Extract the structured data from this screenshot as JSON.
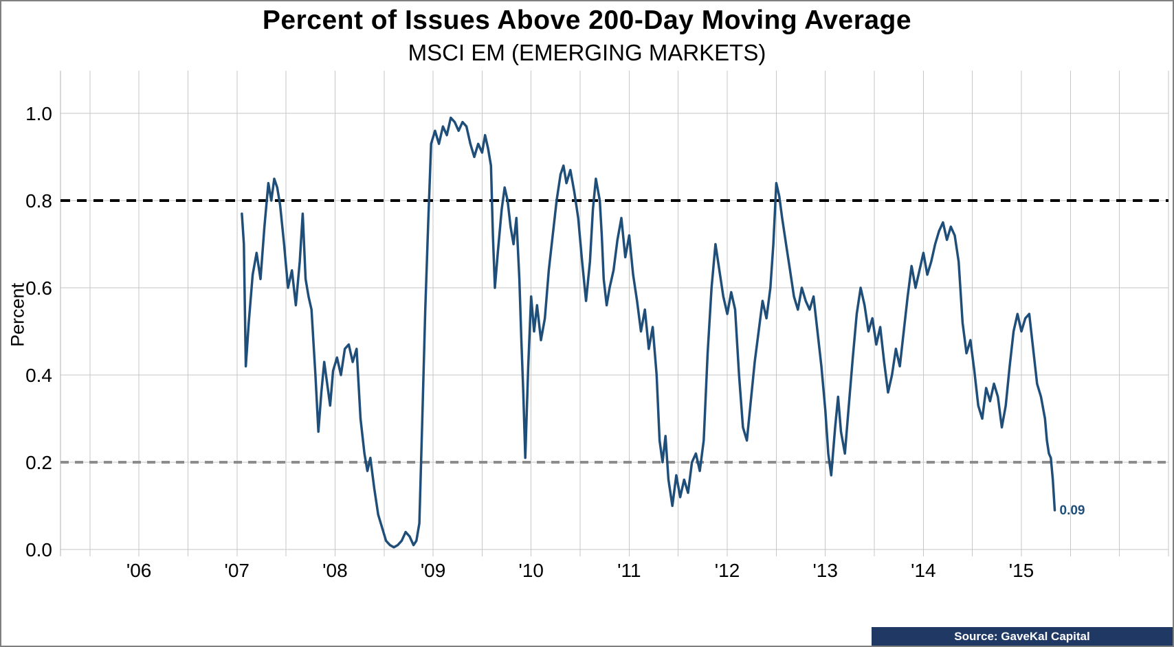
{
  "chart_data": {
    "type": "line",
    "title": "Percent of Issues Above 200-Day Moving Average",
    "subtitle": "MSCI EM (EMERGING MARKETS)",
    "ylabel": "Percent",
    "xlabel": "",
    "x_range": [
      2005.2,
      2016.5
    ],
    "y_range": [
      0,
      1.0
    ],
    "x_ticks": [
      {
        "x": 2006,
        "label": "'06"
      },
      {
        "x": 2007,
        "label": "'07"
      },
      {
        "x": 2008,
        "label": "'08"
      },
      {
        "x": 2009,
        "label": "'09"
      },
      {
        "x": 2010,
        "label": "'10"
      },
      {
        "x": 2011,
        "label": "'11"
      },
      {
        "x": 2012,
        "label": "'12"
      },
      {
        "x": 2013,
        "label": "'13"
      },
      {
        "x": 2014,
        "label": "'14"
      },
      {
        "x": 2015,
        "label": "'15"
      }
    ],
    "y_ticks": [
      {
        "v": 0.0,
        "label": "0.0"
      },
      {
        "v": 0.2,
        "label": "0.2"
      },
      {
        "v": 0.4,
        "label": "0.4"
      },
      {
        "v": 0.6,
        "label": "0.6"
      },
      {
        "v": 0.8,
        "label": "0.8"
      },
      {
        "v": 1.0,
        "label": "1.0"
      }
    ],
    "grid": {
      "vertical_step": 0.5,
      "vertical_start": 2005.5,
      "horizontal_step": 0.2,
      "color": "#c6c6c6"
    },
    "legend": "none",
    "reference_lines": [
      {
        "value": 0.8,
        "color": "#000000",
        "dash": "14 10",
        "width": 4
      },
      {
        "value": 0.2,
        "color": "#8c8c8c",
        "dash": "12 9",
        "width": 4
      }
    ],
    "series": [
      {
        "name": "Percent of issues above 200-day moving average",
        "color": "#1F4E79",
        "width": 3.5,
        "points": [
          [
            2007.05,
            0.77
          ],
          [
            2007.07,
            0.7
          ],
          [
            2007.09,
            0.42
          ],
          [
            2007.12,
            0.52
          ],
          [
            2007.16,
            0.63
          ],
          [
            2007.2,
            0.68
          ],
          [
            2007.24,
            0.62
          ],
          [
            2007.28,
            0.74
          ],
          [
            2007.32,
            0.84
          ],
          [
            2007.35,
            0.8
          ],
          [
            2007.38,
            0.85
          ],
          [
            2007.41,
            0.83
          ],
          [
            2007.44,
            0.79
          ],
          [
            2007.48,
            0.7
          ],
          [
            2007.52,
            0.6
          ],
          [
            2007.56,
            0.64
          ],
          [
            2007.6,
            0.56
          ],
          [
            2007.64,
            0.66
          ],
          [
            2007.67,
            0.77
          ],
          [
            2007.7,
            0.62
          ],
          [
            2007.73,
            0.58
          ],
          [
            2007.76,
            0.55
          ],
          [
            2007.8,
            0.4
          ],
          [
            2007.83,
            0.27
          ],
          [
            2007.86,
            0.36
          ],
          [
            2007.89,
            0.43
          ],
          [
            2007.92,
            0.38
          ],
          [
            2007.95,
            0.33
          ],
          [
            2007.98,
            0.41
          ],
          [
            2008.02,
            0.44
          ],
          [
            2008.06,
            0.4
          ],
          [
            2008.1,
            0.46
          ],
          [
            2008.14,
            0.47
          ],
          [
            2008.18,
            0.43
          ],
          [
            2008.22,
            0.46
          ],
          [
            2008.26,
            0.3
          ],
          [
            2008.3,
            0.22
          ],
          [
            2008.33,
            0.18
          ],
          [
            2008.36,
            0.21
          ],
          [
            2008.4,
            0.14
          ],
          [
            2008.44,
            0.08
          ],
          [
            2008.48,
            0.05
          ],
          [
            2008.52,
            0.02
          ],
          [
            2008.56,
            0.01
          ],
          [
            2008.6,
            0.005
          ],
          [
            2008.64,
            0.01
          ],
          [
            2008.68,
            0.02
          ],
          [
            2008.72,
            0.04
          ],
          [
            2008.76,
            0.03
          ],
          [
            2008.8,
            0.01
          ],
          [
            2008.83,
            0.02
          ],
          [
            2008.86,
            0.06
          ],
          [
            2008.89,
            0.3
          ],
          [
            2008.92,
            0.55
          ],
          [
            2008.95,
            0.75
          ],
          [
            2008.98,
            0.93
          ],
          [
            2009.02,
            0.96
          ],
          [
            2009.06,
            0.93
          ],
          [
            2009.1,
            0.97
          ],
          [
            2009.14,
            0.95
          ],
          [
            2009.18,
            0.99
          ],
          [
            2009.22,
            0.98
          ],
          [
            2009.26,
            0.96
          ],
          [
            2009.3,
            0.98
          ],
          [
            2009.34,
            0.97
          ],
          [
            2009.38,
            0.93
          ],
          [
            2009.42,
            0.9
          ],
          [
            2009.46,
            0.93
          ],
          [
            2009.5,
            0.91
          ],
          [
            2009.53,
            0.95
          ],
          [
            2009.56,
            0.92
          ],
          [
            2009.59,
            0.88
          ],
          [
            2009.61,
            0.72
          ],
          [
            2009.63,
            0.6
          ],
          [
            2009.66,
            0.68
          ],
          [
            2009.7,
            0.78
          ],
          [
            2009.73,
            0.83
          ],
          [
            2009.76,
            0.8
          ],
          [
            2009.79,
            0.74
          ],
          [
            2009.82,
            0.7
          ],
          [
            2009.85,
            0.76
          ],
          [
            2009.88,
            0.62
          ],
          [
            2009.9,
            0.48
          ],
          [
            2009.92,
            0.36
          ],
          [
            2009.94,
            0.21
          ],
          [
            2009.97,
            0.42
          ],
          [
            2010.0,
            0.58
          ],
          [
            2010.03,
            0.5
          ],
          [
            2010.06,
            0.56
          ],
          [
            2010.1,
            0.48
          ],
          [
            2010.14,
            0.53
          ],
          [
            2010.18,
            0.64
          ],
          [
            2010.22,
            0.72
          ],
          [
            2010.26,
            0.8
          ],
          [
            2010.3,
            0.86
          ],
          [
            2010.33,
            0.88
          ],
          [
            2010.36,
            0.84
          ],
          [
            2010.4,
            0.87
          ],
          [
            2010.44,
            0.82
          ],
          [
            2010.48,
            0.76
          ],
          [
            2010.52,
            0.66
          ],
          [
            2010.56,
            0.57
          ],
          [
            2010.6,
            0.66
          ],
          [
            2010.63,
            0.78
          ],
          [
            2010.66,
            0.85
          ],
          [
            2010.7,
            0.8
          ],
          [
            2010.72,
            0.72
          ],
          [
            2010.74,
            0.62
          ],
          [
            2010.77,
            0.56
          ],
          [
            2010.8,
            0.6
          ],
          [
            2010.84,
            0.64
          ],
          [
            2010.88,
            0.71
          ],
          [
            2010.92,
            0.76
          ],
          [
            2010.96,
            0.67
          ],
          [
            2011.0,
            0.72
          ],
          [
            2011.04,
            0.63
          ],
          [
            2011.08,
            0.57
          ],
          [
            2011.12,
            0.5
          ],
          [
            2011.16,
            0.55
          ],
          [
            2011.2,
            0.46
          ],
          [
            2011.24,
            0.51
          ],
          [
            2011.28,
            0.4
          ],
          [
            2011.31,
            0.25
          ],
          [
            2011.34,
            0.2
          ],
          [
            2011.37,
            0.26
          ],
          [
            2011.4,
            0.16
          ],
          [
            2011.44,
            0.1
          ],
          [
            2011.48,
            0.17
          ],
          [
            2011.52,
            0.12
          ],
          [
            2011.56,
            0.16
          ],
          [
            2011.6,
            0.13
          ],
          [
            2011.64,
            0.2
          ],
          [
            2011.68,
            0.22
          ],
          [
            2011.72,
            0.18
          ],
          [
            2011.76,
            0.25
          ],
          [
            2011.8,
            0.45
          ],
          [
            2011.84,
            0.6
          ],
          [
            2011.88,
            0.7
          ],
          [
            2011.92,
            0.64
          ],
          [
            2011.96,
            0.58
          ],
          [
            2012.0,
            0.54
          ],
          [
            2012.04,
            0.59
          ],
          [
            2012.08,
            0.55
          ],
          [
            2012.12,
            0.4
          ],
          [
            2012.16,
            0.28
          ],
          [
            2012.2,
            0.25
          ],
          [
            2012.24,
            0.34
          ],
          [
            2012.28,
            0.43
          ],
          [
            2012.32,
            0.5
          ],
          [
            2012.36,
            0.57
          ],
          [
            2012.4,
            0.53
          ],
          [
            2012.44,
            0.6
          ],
          [
            2012.47,
            0.7
          ],
          [
            2012.5,
            0.84
          ],
          [
            2012.53,
            0.81
          ],
          [
            2012.56,
            0.76
          ],
          [
            2012.6,
            0.7
          ],
          [
            2012.64,
            0.64
          ],
          [
            2012.68,
            0.58
          ],
          [
            2012.72,
            0.55
          ],
          [
            2012.76,
            0.6
          ],
          [
            2012.8,
            0.57
          ],
          [
            2012.84,
            0.55
          ],
          [
            2012.88,
            0.58
          ],
          [
            2012.92,
            0.5
          ],
          [
            2012.96,
            0.42
          ],
          [
            2013.0,
            0.32
          ],
          [
            2013.03,
            0.22
          ],
          [
            2013.06,
            0.17
          ],
          [
            2013.1,
            0.28
          ],
          [
            2013.13,
            0.35
          ],
          [
            2013.16,
            0.27
          ],
          [
            2013.2,
            0.22
          ],
          [
            2013.24,
            0.33
          ],
          [
            2013.28,
            0.44
          ],
          [
            2013.32,
            0.54
          ],
          [
            2013.36,
            0.6
          ],
          [
            2013.4,
            0.56
          ],
          [
            2013.44,
            0.5
          ],
          [
            2013.48,
            0.53
          ],
          [
            2013.52,
            0.47
          ],
          [
            2013.56,
            0.51
          ],
          [
            2013.6,
            0.43
          ],
          [
            2013.64,
            0.36
          ],
          [
            2013.68,
            0.4
          ],
          [
            2013.72,
            0.46
          ],
          [
            2013.76,
            0.42
          ],
          [
            2013.8,
            0.5
          ],
          [
            2013.84,
            0.58
          ],
          [
            2013.88,
            0.65
          ],
          [
            2013.92,
            0.6
          ],
          [
            2013.96,
            0.64
          ],
          [
            2014.0,
            0.68
          ],
          [
            2014.04,
            0.63
          ],
          [
            2014.08,
            0.66
          ],
          [
            2014.12,
            0.7
          ],
          [
            2014.16,
            0.73
          ],
          [
            2014.2,
            0.75
          ],
          [
            2014.24,
            0.71
          ],
          [
            2014.28,
            0.74
          ],
          [
            2014.32,
            0.72
          ],
          [
            2014.36,
            0.66
          ],
          [
            2014.4,
            0.52
          ],
          [
            2014.44,
            0.45
          ],
          [
            2014.48,
            0.48
          ],
          [
            2014.52,
            0.41
          ],
          [
            2014.56,
            0.33
          ],
          [
            2014.6,
            0.3
          ],
          [
            2014.64,
            0.37
          ],
          [
            2014.68,
            0.34
          ],
          [
            2014.72,
            0.38
          ],
          [
            2014.76,
            0.35
          ],
          [
            2014.8,
            0.28
          ],
          [
            2014.84,
            0.33
          ],
          [
            2014.88,
            0.42
          ],
          [
            2014.92,
            0.5
          ],
          [
            2014.96,
            0.54
          ],
          [
            2015.0,
            0.5
          ],
          [
            2015.04,
            0.53
          ],
          [
            2015.08,
            0.54
          ],
          [
            2015.12,
            0.46
          ],
          [
            2015.16,
            0.38
          ],
          [
            2015.2,
            0.35
          ],
          [
            2015.24,
            0.3
          ],
          [
            2015.26,
            0.25
          ],
          [
            2015.28,
            0.22
          ],
          [
            2015.3,
            0.21
          ],
          [
            2015.32,
            0.16
          ],
          [
            2015.34,
            0.09
          ]
        ]
      }
    ],
    "last_value_label": {
      "text": "0.09",
      "color": "#1F4E79"
    }
  },
  "source": {
    "label": "Source: GaveKal Capital",
    "bg": "#1F3864",
    "fg": "#FFFFFF"
  }
}
